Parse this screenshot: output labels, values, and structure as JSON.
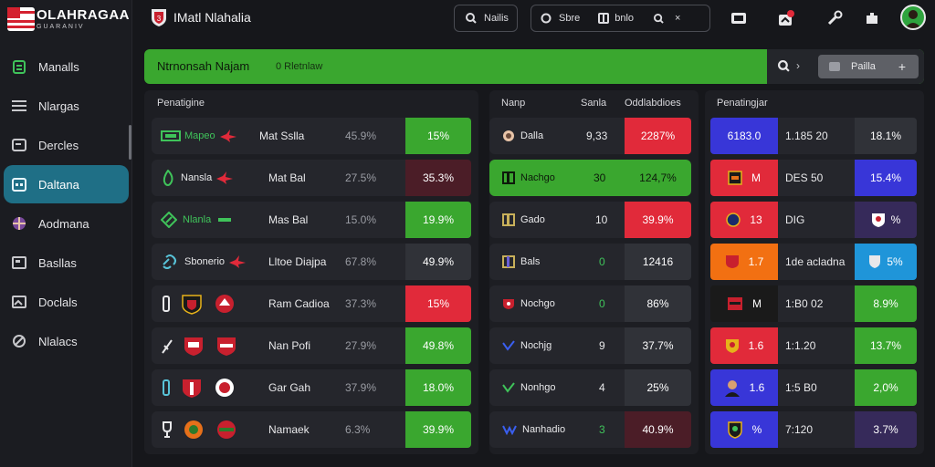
{
  "brand": {
    "name": "OLAHRAGAA",
    "tagline": "GUARANIV"
  },
  "nav": {
    "items": [
      {
        "label": "Manalls"
      },
      {
        "label": "Nlargas"
      },
      {
        "label": "Dercles"
      },
      {
        "label": "Daltana"
      },
      {
        "label": "Aodmana"
      },
      {
        "label": "Basllas"
      },
      {
        "label": "Doclals"
      },
      {
        "label": "Nlalacs"
      }
    ]
  },
  "topbar": {
    "title": "IMatl Nlahalia",
    "search_btn": "Nailis",
    "group_a": "Sbre",
    "group_b": "bnlo",
    "close": "×"
  },
  "header": {
    "title": "Ntrnonsah Najam",
    "sub": "0  Rletnlaw",
    "search_caret": "›",
    "button": "Pailla",
    "plus": "+"
  },
  "panel1": {
    "title": "Penatigine",
    "rows": [
      {
        "team": "Mapeo",
        "match": "Mat Sslla",
        "odds": "45.9%",
        "pct": "15%"
      },
      {
        "team": "Nansla",
        "match": "Mat Bal",
        "odds": "27.5%",
        "pct": "35.3%"
      },
      {
        "team": "Nlanla",
        "match": "Mas Bal",
        "odds": "15.0%",
        "pct": "19.9%"
      },
      {
        "team": "Sbonerio",
        "match": "Lltoe Diajpa",
        "odds": "67.8%",
        "pct": "49.9%"
      },
      {
        "team": "",
        "match": "Ram Cadioa",
        "odds": "37.3%",
        "pct": "15%"
      },
      {
        "team": "",
        "match": "Nan Pofi",
        "odds": "27.9%",
        "pct": "49.8%"
      },
      {
        "team": "",
        "match": "Gar Gah",
        "odds": "37.9%",
        "pct": "18.0%"
      },
      {
        "team": "",
        "match": "Namaek",
        "odds": "6.3%",
        "pct": "39.9%"
      }
    ]
  },
  "panel2": {
    "col1": "Nanp",
    "col2": "Sanla",
    "col3": "Oddlabdioes",
    "rows": [
      {
        "name": "Dalla",
        "num": "9,33",
        "pct": "2287%"
      },
      {
        "name": "Nachgo",
        "num": "30",
        "pct": "124,7%"
      },
      {
        "name": "Gado",
        "num": "10",
        "pct": "39.9%"
      },
      {
        "name": "Bals",
        "num": "0",
        "pct": "12416"
      },
      {
        "name": "Nochgo",
        "num": "0",
        "pct": "86%"
      },
      {
        "name": "Nochjg",
        "num": "9",
        "pct": "37.7%"
      },
      {
        "name": "Nonhgo",
        "num": "4",
        "pct": "25%"
      },
      {
        "name": "Nanhadio",
        "num": "3",
        "pct": "40.9%"
      }
    ]
  },
  "panel3": {
    "title": "Penatingjar",
    "rows": [
      {
        "badge": "6183.0",
        "label": "1.185 20",
        "pct": "18.1%"
      },
      {
        "badge": "M",
        "label": "DES 50",
        "pct": "15.4%"
      },
      {
        "badge": "13",
        "label": "DIG",
        "pct": "%"
      },
      {
        "badge": "1.7",
        "label": "1de acladna",
        "pct": "5%"
      },
      {
        "badge": "M",
        "label": "1:B0 02",
        "pct": "8.9%"
      },
      {
        "badge": "1.6",
        "label": "1:1.20",
        "pct": "13.7%"
      },
      {
        "badge": "1.6",
        "label": "1:5 B0",
        "pct": "2,0%"
      },
      {
        "badge": "%",
        "label": "7:120",
        "pct": "3.7%"
      }
    ]
  }
}
